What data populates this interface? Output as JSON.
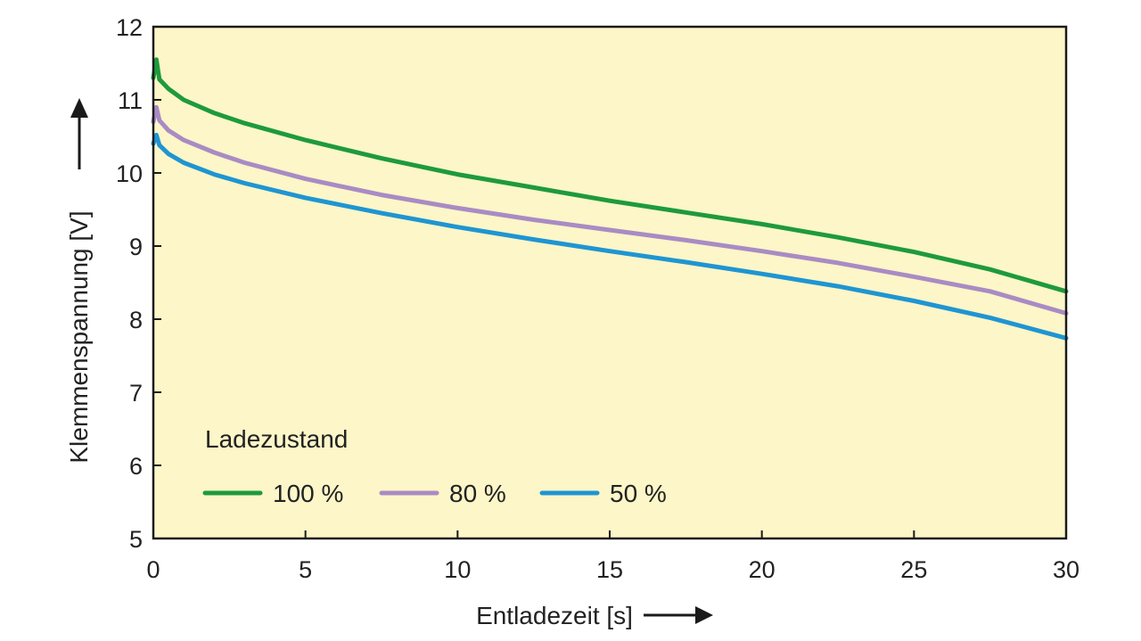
{
  "chart_data": {
    "type": "line",
    "xlabel": "Entladezeit [s]",
    "ylabel": "Klemmenspannung [V]",
    "xlim": [
      0,
      30
    ],
    "ylim": [
      5,
      12
    ],
    "x_ticks": [
      "0",
      "5",
      "10",
      "15",
      "20",
      "25",
      "30"
    ],
    "y_ticks": [
      "5",
      "6",
      "7",
      "8",
      "9",
      "10",
      "11",
      "12"
    ],
    "grid": false,
    "plot_background": "#FCF6C8",
    "legend": {
      "title": "Ladezustand",
      "placement": "bottom-left"
    },
    "x": [
      0,
      0.1,
      0.2,
      0.5,
      1,
      2,
      3,
      5,
      7.5,
      10,
      12.5,
      15,
      17.5,
      20,
      22.5,
      25,
      27.5,
      30
    ],
    "series": [
      {
        "name": "100 %",
        "color": "#1E9A3C",
        "values": [
          11.3,
          11.55,
          11.28,
          11.15,
          11.0,
          10.82,
          10.68,
          10.45,
          10.2,
          9.98,
          9.8,
          9.62,
          9.46,
          9.3,
          9.12,
          8.92,
          8.68,
          8.38
        ]
      },
      {
        "name": "80 %",
        "color": "#A98BC4",
        "values": [
          10.7,
          10.9,
          10.72,
          10.58,
          10.45,
          10.28,
          10.14,
          9.92,
          9.7,
          9.52,
          9.36,
          9.22,
          9.08,
          8.93,
          8.77,
          8.58,
          8.38,
          8.08
        ]
      },
      {
        "name": "50 %",
        "color": "#1F95D2",
        "values": [
          10.4,
          10.52,
          10.38,
          10.26,
          10.14,
          9.98,
          9.86,
          9.66,
          9.45,
          9.26,
          9.09,
          8.93,
          8.78,
          8.62,
          8.45,
          8.25,
          8.02,
          7.74
        ]
      }
    ]
  }
}
